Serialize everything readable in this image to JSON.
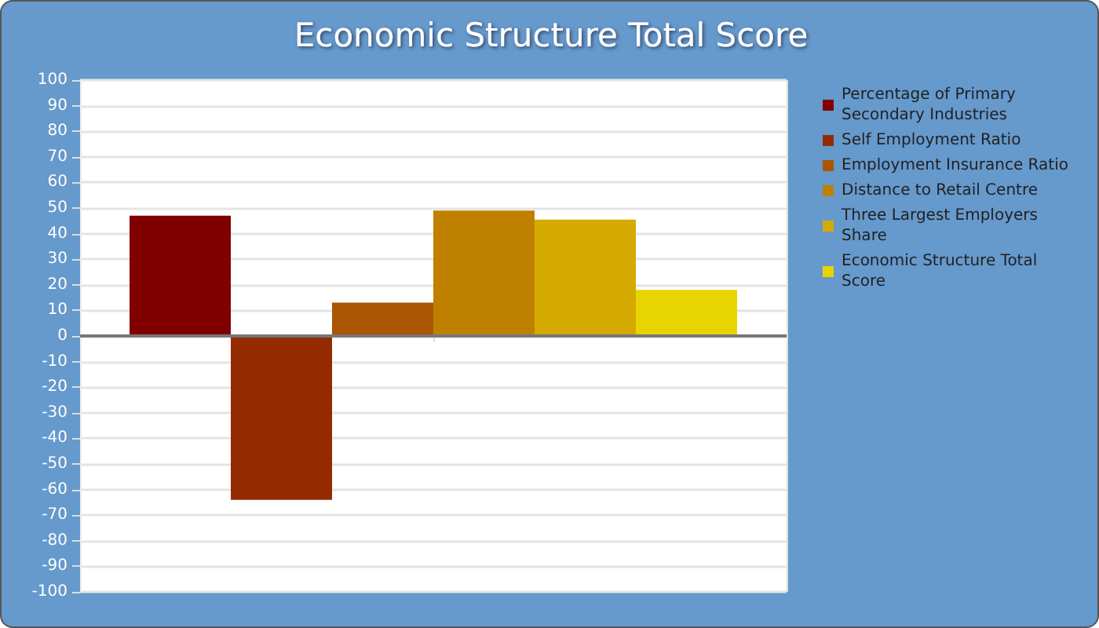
{
  "chart_data": {
    "type": "bar",
    "title": "Economic Structure Total Score",
    "categories": [
      null
    ],
    "series": [
      {
        "name": "Percentage of Primary Secondary Industries",
        "color": "#800000",
        "values": [
          47
        ]
      },
      {
        "name": "Self Employment Ratio",
        "color": "#942b00",
        "values": [
          -64
        ]
      },
      {
        "name": "Employment Insurance Ratio",
        "color": "#aa5500",
        "values": [
          13
        ]
      },
      {
        "name": "Distance to Retail Centre",
        "color": "#bf8000",
        "values": [
          49
        ]
      },
      {
        "name": "Three Largest Employers Share",
        "color": "#d4aa00",
        "values": [
          45.5
        ]
      },
      {
        "name": "Economic Structure Total Score",
        "color": "#e8d400",
        "values": [
          18
        ]
      }
    ],
    "ylim": [
      -100,
      100
    ],
    "yticks": [
      -100,
      -90,
      -80,
      -70,
      -60,
      -50,
      -40,
      -30,
      -20,
      -10,
      0,
      10,
      20,
      30,
      40,
      50,
      60,
      70,
      80,
      90,
      100
    ],
    "grid": true,
    "legend": "right"
  }
}
